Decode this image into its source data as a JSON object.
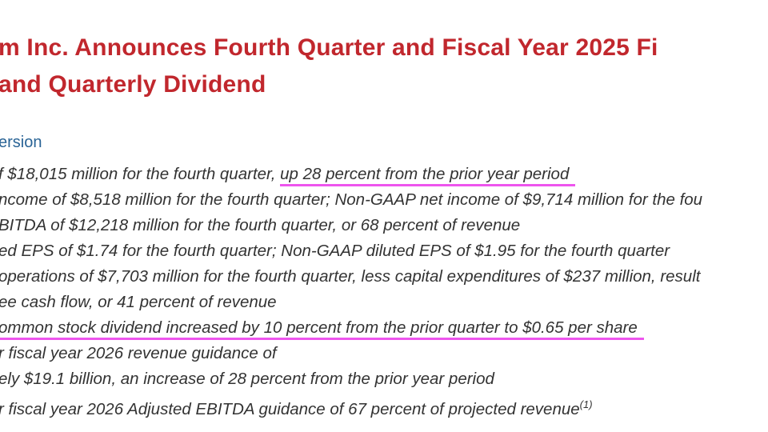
{
  "headline": {
    "line1": "m Inc. Announces Fourth Quarter and Fiscal Year 2025 Fi",
    "line2": "and Quarterly Dividend"
  },
  "version_link": "ersion",
  "highlights": [
    {
      "before": "f $18,015 million for the fourth quarter, ",
      "highlight": "up 28 percent from the prior year period"
    },
    {
      "text": "ncome of $8,518 million for the fourth quarter; Non-GAAP net income of $9,714 million for the fou"
    },
    {
      "text": "BITDA of $12,218 million for the fourth quarter, or 68 percent of revenue"
    },
    {
      "text": "ed EPS of $1.74 for the fourth quarter; Non-GAAP diluted EPS of $1.95 for the fourth quarter"
    },
    {
      "text": "operations of $7,703 million for the fourth quarter, less capital expenditures of $237 million, result"
    },
    {
      "text": "ee cash flow, or 41 percent of revenue"
    },
    {
      "highlight": "ommon stock dividend increased by 10 percent from the prior quarter to $0.65 per share"
    },
    {
      "text": "r fiscal year 2026 revenue guidance of"
    },
    {
      "text": "ely $19.1 billion, an increase of 28 percent from the prior year period"
    },
    {
      "text": "r fiscal year 2026 Adjusted EBITDA guidance of 67 percent of projected revenue",
      "footnote": "(1)"
    }
  ],
  "colors": {
    "title": "#c1272d",
    "link": "#2a6496",
    "body": "#333333",
    "highlight_underline": "#ee55ee"
  }
}
